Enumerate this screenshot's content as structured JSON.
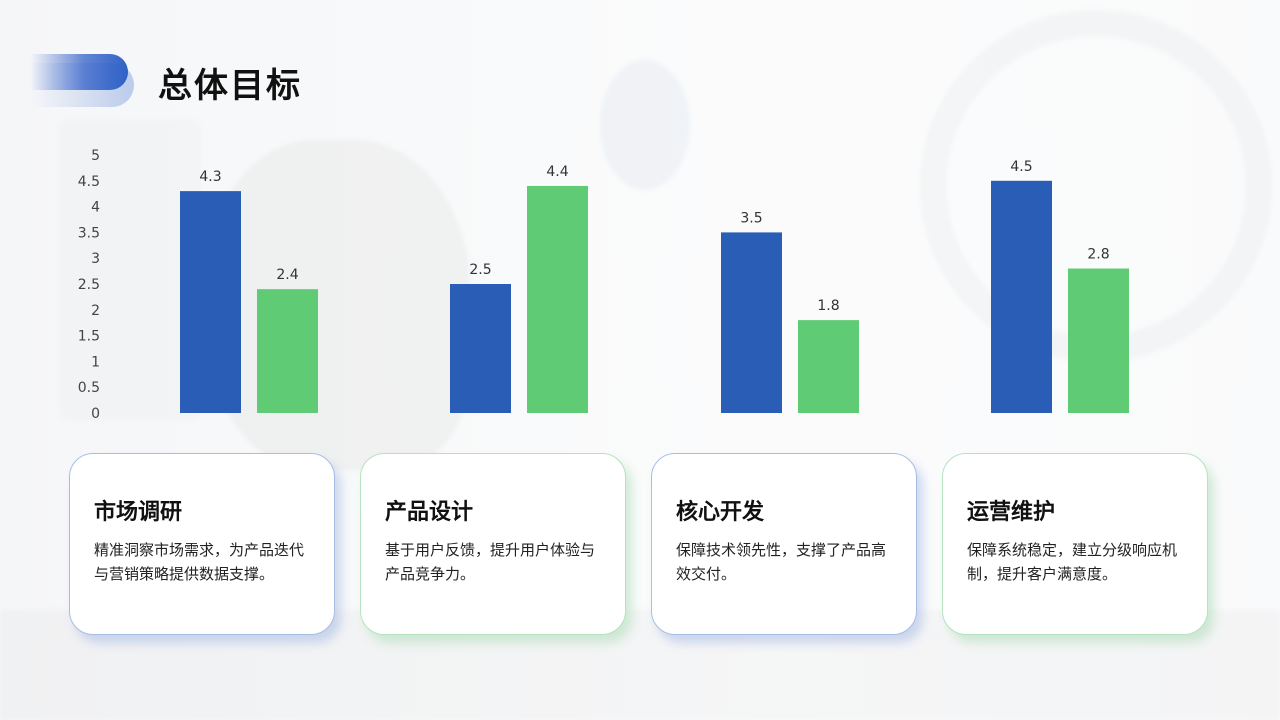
{
  "header": {
    "title": "总体目标"
  },
  "colors": {
    "series_a": "#2a5db5",
    "series_b": "#5fcb74",
    "tick_text": "#444444",
    "label_text": "#333333"
  },
  "chart_data": {
    "type": "bar",
    "categories": [
      "市场调研",
      "产品设计",
      "核心开发",
      "运营维护"
    ],
    "series": [
      {
        "values": [
          4.3,
          2.5,
          3.5,
          4.5
        ]
      },
      {
        "values": [
          2.4,
          4.4,
          1.8,
          2.8
        ]
      }
    ],
    "ylim": [
      0,
      5
    ],
    "yticks": [
      "0",
      "0.5",
      "1",
      "1.5",
      "2",
      "2.5",
      "3",
      "3.5",
      "4",
      "4.5",
      "5"
    ],
    "data_labels": true,
    "grid": false,
    "legend": false
  },
  "cards": [
    {
      "title": "市场调研",
      "desc": "精准洞察市场需求，为产品迭代与营销策略提供数据支撑。",
      "style": "blue"
    },
    {
      "title": "产品设计",
      "desc": "基于用户反馈，提升用户体验与产品竞争力。",
      "style": "green"
    },
    {
      "title": "核心开发",
      "desc": "保障技术领先性，支撑了产品高效交付。",
      "style": "blue"
    },
    {
      "title": "运营维护",
      "desc": "保障系统稳定，建立分级响应机制，提升客户满意度。",
      "style": "green"
    }
  ]
}
